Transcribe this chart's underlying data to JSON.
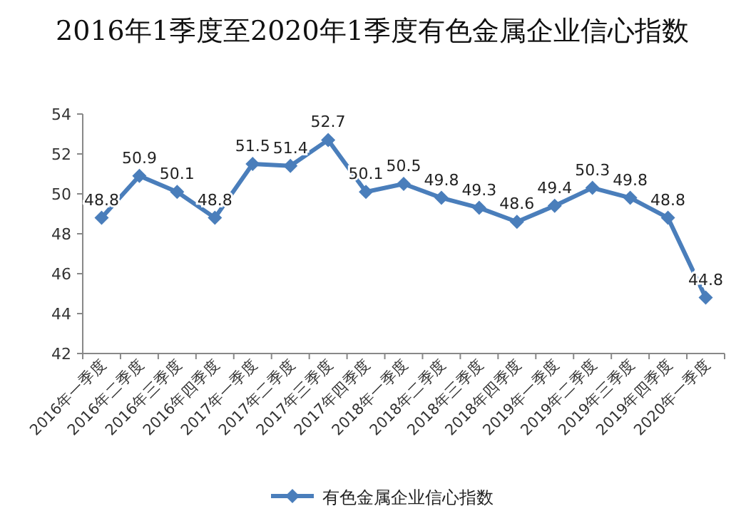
{
  "chart_data": {
    "type": "line",
    "title": "2016年1季度至2020年1季度有色金属企业信心指数",
    "categories": [
      "2016年一季度",
      "2016年二季度",
      "2016年三季度",
      "2016年四季度",
      "2017年一季度",
      "2017年二季度",
      "2017年三季度",
      "2017年四季度",
      "2018年一季度",
      "2018年二季度",
      "2018年三季度",
      "2018年四季度",
      "2019年一季度",
      "2019年二季度",
      "2019年三季度",
      "2019年四季度",
      "2020年一季度"
    ],
    "series": [
      {
        "name": "有色金属企业信心指数",
        "color": "#4a7ebb",
        "values": [
          48.8,
          50.9,
          50.1,
          48.8,
          51.5,
          51.4,
          52.7,
          50.1,
          50.5,
          49.8,
          49.3,
          48.6,
          49.4,
          50.3,
          49.8,
          48.8,
          44.8
        ]
      }
    ],
    "ylim": [
      42,
      54
    ],
    "yticks": [
      42,
      44,
      46,
      48,
      50,
      52,
      54
    ],
    "grid": false,
    "legend": "bottom",
    "marker": "diamond",
    "line_style": "solid",
    "data_labels": true
  }
}
